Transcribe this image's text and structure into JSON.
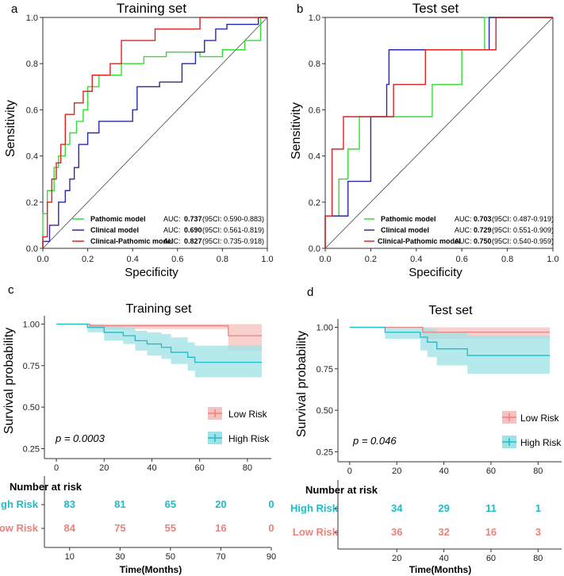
{
  "chart_data": [
    {
      "type": "line",
      "panel_label": "a",
      "title": "Training set",
      "xlabel": "Specificity",
      "ylabel": "Sensitivity",
      "xlim": [
        0,
        1
      ],
      "ylim": [
        0,
        1
      ],
      "x_ticks": [
        "0.0",
        "0.2",
        "0.4",
        "0.6",
        "0.8",
        "1.0"
      ],
      "y_ticks": [
        "0.0",
        "0.2",
        "0.4",
        "0.6",
        "0.8",
        "1.0"
      ],
      "reference_line": "diagonal",
      "series": [
        {
          "name": "Pathomic model",
          "color": "#33dd33",
          "auc_label": "AUC: ",
          "auc": "0.737",
          "ci": "(95CI: 0.590-0.883)",
          "x": [
            0,
            0,
            0.02,
            0.02,
            0.05,
            0.05,
            0.07,
            0.07,
            0.1,
            0.1,
            0.12,
            0.12,
            0.15,
            0.15,
            0.18,
            0.18,
            0.2,
            0.2,
            0.25,
            0.25,
            0.35,
            0.35,
            0.45,
            0.45,
            0.55,
            0.55,
            0.7,
            0.7,
            0.8,
            0.8,
            0.9,
            0.9,
            0.97,
            0.97,
            1
          ],
          "y": [
            0,
            0.15,
            0.15,
            0.25,
            0.25,
            0.35,
            0.35,
            0.4,
            0.4,
            0.45,
            0.45,
            0.5,
            0.5,
            0.55,
            0.55,
            0.6,
            0.6,
            0.7,
            0.7,
            0.75,
            0.75,
            0.8,
            0.8,
            0.83,
            0.83,
            0.85,
            0.85,
            0.83,
            0.83,
            0.86,
            0.86,
            0.9,
            0.9,
            1,
            1
          ]
        },
        {
          "name": "Clinical model",
          "color": "#2a2aa8",
          "auc_label": "AUC: ",
          "auc": "0.690",
          "ci": "(95CI: 0.561-0.819)",
          "x": [
            0,
            0,
            0.03,
            0.03,
            0.07,
            0.07,
            0.1,
            0.1,
            0.12,
            0.12,
            0.14,
            0.14,
            0.16,
            0.16,
            0.2,
            0.2,
            0.25,
            0.25,
            0.4,
            0.4,
            0.42,
            0.42,
            0.52,
            0.52,
            0.62,
            0.62,
            0.68,
            0.68,
            0.72,
            0.72,
            0.77,
            0.77,
            0.82,
            0.82,
            0.96,
            0.96,
            1
          ],
          "y": [
            0,
            0.03,
            0.03,
            0.1,
            0.1,
            0.2,
            0.2,
            0.25,
            0.25,
            0.3,
            0.3,
            0.35,
            0.35,
            0.45,
            0.45,
            0.5,
            0.5,
            0.55,
            0.55,
            0.6,
            0.6,
            0.7,
            0.7,
            0.72,
            0.72,
            0.8,
            0.8,
            0.85,
            0.85,
            0.9,
            0.9,
            0.95,
            0.95,
            0.97,
            0.97,
            1,
            1
          ]
        },
        {
          "name": "Clinical-Pathomic model",
          "color": "#dd2222",
          "auc_label": "AUC: ",
          "auc": "0.827",
          "ci": "(95CI: 0.735-0.918)",
          "x": [
            0,
            0,
            0.02,
            0.02,
            0.04,
            0.04,
            0.06,
            0.06,
            0.08,
            0.08,
            0.1,
            0.1,
            0.14,
            0.14,
            0.18,
            0.18,
            0.22,
            0.22,
            0.3,
            0.3,
            0.35,
            0.35,
            0.5,
            0.5,
            0.7,
            0.7,
            0.8,
            0.8,
            1
          ],
          "y": [
            0,
            0.05,
            0.05,
            0.2,
            0.2,
            0.3,
            0.3,
            0.37,
            0.37,
            0.45,
            0.45,
            0.58,
            0.58,
            0.63,
            0.63,
            0.68,
            0.68,
            0.75,
            0.75,
            0.8,
            0.8,
            0.9,
            0.9,
            0.95,
            0.95,
            1,
            1,
            1,
            1
          ]
        }
      ]
    },
    {
      "type": "line",
      "panel_label": "b",
      "title": "Test set",
      "xlabel": "Specificity",
      "ylabel": "Sensitivity",
      "xlim": [
        0,
        1
      ],
      "ylim": [
        0,
        1
      ],
      "x_ticks": [
        "0.0",
        "0.2",
        "0.4",
        "0.6",
        "0.8",
        "1.0"
      ],
      "y_ticks": [
        "0.0",
        "0.2",
        "0.4",
        "0.6",
        "0.8",
        "1.0"
      ],
      "reference_line": "diagonal",
      "series": [
        {
          "name": "Pathomic model",
          "color": "#33dd33",
          "auc_label": "AUC: ",
          "auc": "0.703",
          "ci": "(95CI: 0.487-0.919)",
          "x": [
            0,
            0,
            0.06,
            0.06,
            0.1,
            0.1,
            0.15,
            0.15,
            0.25,
            0.25,
            0.35,
            0.35,
            0.47,
            0.47,
            0.6,
            0.6,
            0.7,
            0.7,
            0.75,
            0.75,
            1
          ],
          "y": [
            0,
            0.14,
            0.14,
            0.3,
            0.3,
            0.43,
            0.43,
            0.57,
            0.57,
            0.57,
            0.57,
            0.57,
            0.57,
            0.71,
            0.71,
            0.86,
            0.86,
            1,
            1,
            1,
            1
          ]
        },
        {
          "name": "Clinical model",
          "color": "#2a2aa8",
          "auc_label": "AUC: ",
          "auc": "0.729",
          "ci": "(95CI: 0.551-0.909)",
          "x": [
            0,
            0,
            0.1,
            0.1,
            0.2,
            0.2,
            0.27,
            0.27,
            0.28,
            0.28,
            0.35,
            0.35,
            0.72,
            0.72,
            1
          ],
          "y": [
            0,
            0.14,
            0.14,
            0.29,
            0.29,
            0.57,
            0.57,
            0.71,
            0.71,
            0.86,
            0.86,
            0.86,
            0.86,
            1,
            1
          ]
        },
        {
          "name": "Clinical-Pathomic model",
          "color": "#dd2222",
          "auc_label": "AUC: ",
          "auc": "0.750",
          "ci": "(95CI: 0.540-0.959)",
          "x": [
            0,
            0,
            0.03,
            0.03,
            0.08,
            0.08,
            0.12,
            0.12,
            0.28,
            0.28,
            0.3,
            0.3,
            0.44,
            0.44,
            0.72,
            0.72,
            0.75,
            0.75,
            1
          ],
          "y": [
            0,
            0.14,
            0.14,
            0.43,
            0.43,
            0.57,
            0.57,
            0.57,
            0.57,
            0.57,
            0.57,
            0.71,
            0.71,
            0.86,
            0.86,
            0.86,
            0.86,
            1,
            1
          ]
        }
      ]
    },
    {
      "type": "line",
      "panel_label": "c",
      "title": "Training set",
      "xlabel": "Time(Months)",
      "ylabel": "Survival probability",
      "xlim": [
        -5,
        90
      ],
      "ylim": [
        0.19,
        1.05
      ],
      "x_ticks": [
        "0",
        "20",
        "40",
        "60",
        "80"
      ],
      "y_ticks": [
        "1.00",
        "0.75",
        "0.50",
        "0.25"
      ],
      "pvalue": "p = 0.0003",
      "legend": [
        "Low Risk",
        "High Risk"
      ],
      "series": [
        {
          "name": "Low Risk",
          "color": "#e8837d",
          "band_color": "#f6c2bf",
          "x": [
            0,
            14,
            14,
            72,
            72,
            86
          ],
          "y": [
            1,
            1,
            0.99,
            0.99,
            0.93,
            0.93
          ],
          "upper": [
            1,
            1,
            1,
            1,
            1,
            1
          ],
          "lower": [
            1,
            1,
            0.97,
            0.97,
            0.84,
            0.84
          ]
        },
        {
          "name": "High Risk",
          "color": "#1fbcc7",
          "band_color": "#9ee1e6",
          "x": [
            0,
            13,
            13,
            20,
            20,
            28,
            28,
            33,
            33,
            38,
            38,
            44,
            44,
            48,
            48,
            55,
            55,
            58,
            58,
            86
          ],
          "y": [
            1,
            1,
            0.98,
            0.98,
            0.95,
            0.95,
            0.93,
            0.93,
            0.9,
            0.9,
            0.88,
            0.88,
            0.86,
            0.86,
            0.83,
            0.83,
            0.8,
            0.8,
            0.77,
            0.77
          ],
          "upper": [
            1,
            1,
            1,
            1,
            0.99,
            0.99,
            0.98,
            0.98,
            0.96,
            0.96,
            0.95,
            0.95,
            0.94,
            0.94,
            0.92,
            0.92,
            0.89,
            0.89,
            0.87,
            0.87
          ],
          "lower": [
            1,
            1,
            0.95,
            0.95,
            0.9,
            0.9,
            0.88,
            0.88,
            0.84,
            0.84,
            0.81,
            0.81,
            0.79,
            0.79,
            0.76,
            0.76,
            0.72,
            0.72,
            0.68,
            0.68
          ]
        }
      ],
      "risk_table": {
        "title": "Number at risk",
        "rows": [
          {
            "label": "High Risk",
            "color": "#1fbcc7",
            "values": [
              "83",
              "81",
              "65",
              "20",
              "0"
            ]
          },
          {
            "label": "Low Risk",
            "color": "#e8837d",
            "values": [
              "84",
              "75",
              "55",
              "16",
              "0"
            ]
          }
        ],
        "times": [
          10,
          30,
          50,
          70,
          90
        ],
        "xlim": [
          0,
          90
        ],
        "x_ticks": [
          "10",
          "30",
          "50",
          "70",
          "90"
        ]
      }
    },
    {
      "type": "line",
      "panel_label": "d",
      "title": "Test set",
      "xlabel": "Time(Months)",
      "ylabel": "Survival probability",
      "xlim": [
        -5,
        90
      ],
      "ylim": [
        0.19,
        1.05
      ],
      "x_ticks": [
        "0",
        "20",
        "40",
        "60",
        "80"
      ],
      "y_ticks": [
        "1.00",
        "0.75",
        "0.50",
        "0.25"
      ],
      "pvalue": "p = 0.046",
      "legend": [
        "Low Risk",
        "High Risk"
      ],
      "series": [
        {
          "name": "Low Risk",
          "color": "#e8837d",
          "band_color": "#f6c2bf",
          "x": [
            0,
            31,
            31,
            85
          ],
          "y": [
            1,
            1,
            0.97,
            0.97
          ],
          "upper": [
            1,
            1,
            1,
            1
          ],
          "lower": [
            1,
            1,
            0.93,
            0.93
          ]
        },
        {
          "name": "High Risk",
          "color": "#1fbcc7",
          "band_color": "#9ee1e6",
          "x": [
            0,
            15,
            15,
            30,
            30,
            33,
            33,
            37,
            37,
            50,
            50,
            85
          ],
          "y": [
            1,
            1,
            0.97,
            0.97,
            0.94,
            0.94,
            0.91,
            0.91,
            0.87,
            0.87,
            0.83,
            0.83
          ],
          "upper": [
            1,
            1,
            1,
            1,
            1,
            1,
            0.99,
            0.99,
            0.97,
            0.97,
            0.95,
            0.95
          ],
          "lower": [
            1,
            1,
            0.93,
            0.93,
            0.86,
            0.86,
            0.82,
            0.82,
            0.77,
            0.77,
            0.72,
            0.72
          ]
        }
      ],
      "risk_table": {
        "title": "Number at risk",
        "rows": [
          {
            "label": "High Risk",
            "color": "#1fbcc7",
            "values": [
              "34",
              "29",
              "11",
              "1"
            ]
          },
          {
            "label": "Low Risk",
            "color": "#e8837d",
            "values": [
              "36",
              "32",
              "16",
              "3"
            ]
          }
        ],
        "times": [
          20,
          40,
          60,
          80
        ],
        "xlim": [
          -5,
          90
        ],
        "x_ticks": [
          "20",
          "40",
          "60",
          "80"
        ]
      }
    }
  ]
}
